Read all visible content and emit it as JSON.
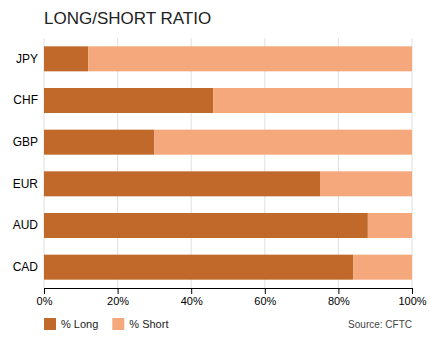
{
  "chart_data": {
    "type": "bar",
    "orientation": "horizontal",
    "stacked": true,
    "title": "LONG/SHORT RATIO",
    "categories": [
      "CAD",
      "AUD",
      "EUR",
      "GBP",
      "CHF",
      "JPY"
    ],
    "series": [
      {
        "name": "% Long",
        "color": "#C0692A",
        "values": [
          84,
          88,
          75,
          30,
          46,
          12
        ]
      },
      {
        "name": "% Short",
        "color": "#F4A87C",
        "values": [
          16,
          12,
          25,
          70,
          54,
          88
        ]
      }
    ],
    "xlim": [
      0,
      100
    ],
    "xticks": [
      {
        "value": 0,
        "label": "0%"
      },
      {
        "value": 20,
        "label": "20%"
      },
      {
        "value": 40,
        "label": "40%"
      },
      {
        "value": 60,
        "label": "60%"
      },
      {
        "value": 80,
        "label": "80%"
      },
      {
        "value": 100,
        "label": "100%"
      }
    ],
    "grid": true,
    "legend": "bottom",
    "annotations": [
      "Source: CFTC"
    ]
  }
}
